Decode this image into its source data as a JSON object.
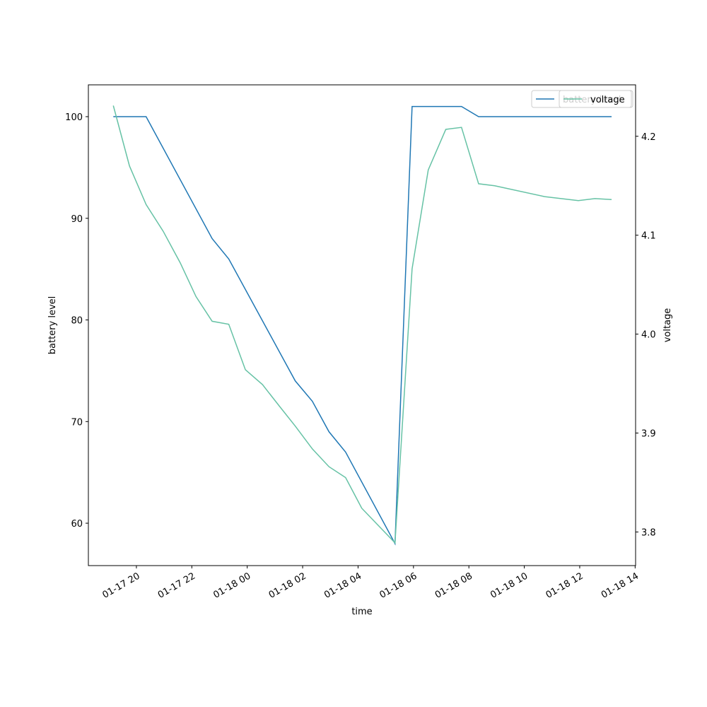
{
  "chart_data": {
    "type": "line",
    "x_label": "time",
    "y_label": "battery level",
    "y2_label": "voltage",
    "xlim": [
      "01-17 18:16",
      "01-18 14:01"
    ],
    "xticks": [
      "01-17 20",
      "01-17 22",
      "01-18 00",
      "01-18 02",
      "01-18 04",
      "01-18 06",
      "01-18 08",
      "01-18 10",
      "01-18 12",
      "01-18 14"
    ],
    "ylim": [
      55.83,
      103.13
    ],
    "yticks": [
      60,
      70,
      80,
      90,
      100
    ],
    "y2lim": [
      3.766,
      4.252
    ],
    "y2ticks": [
      3.8,
      3.9,
      {
        "value": 4.0,
        "label": "4.0"
      },
      4.1,
      4.2
    ],
    "legend": "upper right",
    "series": [
      {
        "name": "battery level",
        "color": "#1f77b4",
        "x": [
          "01-17 19:10",
          "01-17 20:21",
          "01-17 22:44",
          "01-17 23:20",
          "01-18 01:44",
          "01-18 02:21",
          "01-18 02:57",
          "01-18 03:33",
          "01-18 05:20",
          "01-18 05:57",
          "01-18 07:44",
          "01-18 08:21",
          "01-18 13:09"
        ],
        "values": [
          100,
          100,
          88,
          86,
          74,
          72,
          69,
          67,
          58,
          101,
          101,
          100,
          100
        ]
      },
      {
        "name": "voltage",
        "color": "#66c2a5",
        "axis": "y2",
        "x": [
          "01-17 19:10",
          "01-17 19:45",
          "01-17 20:21",
          "01-17 20:58",
          "01-17 21:35",
          "01-17 22:09",
          "01-17 22:44",
          "01-17 23:20",
          "01-17 23:56",
          "01-18 00:33",
          "01-18 01:10",
          "01-18 01:44",
          "01-18 02:21",
          "01-18 02:57",
          "01-18 03:33",
          "01-18 04:08",
          "01-18 05:20",
          "01-18 05:57",
          "01-18 06:32",
          "01-18 07:10",
          "01-18 07:44",
          "01-18 08:21",
          "01-18 08:56",
          "01-18 10:44",
          "01-18 11:57",
          "01-18 12:33",
          "01-18 13:09"
        ],
        "values": [
          4.231,
          4.17,
          4.131,
          4.104,
          4.072,
          4.038,
          4.013,
          4.01,
          3.964,
          3.949,
          3.927,
          3.907,
          3.884,
          3.866,
          3.855,
          3.824,
          3.789,
          4.066,
          4.166,
          4.207,
          4.209,
          4.152,
          4.15,
          4.139,
          4.135,
          4.137,
          4.136
        ]
      }
    ]
  }
}
